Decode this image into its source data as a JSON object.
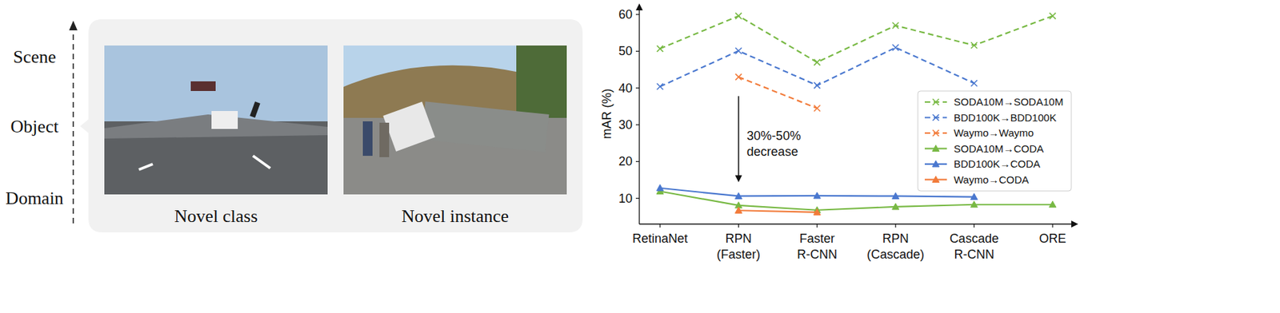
{
  "figure": {
    "levels": [
      "Scene",
      "Object",
      "Domain"
    ],
    "images": [
      {
        "caption": "Novel class"
      },
      {
        "caption": "Novel instance"
      }
    ]
  },
  "chart_data": {
    "type": "line",
    "y_label": "mAR (%)",
    "categories": [
      "RetinaNet",
      "RPN (Faster)",
      "Faster R-CNN",
      "RPN (Cascade)",
      "Cascade R-CNN",
      "ORE"
    ],
    "series": [
      {
        "name": "SODA10M→SODA10M",
        "color": "#78b944",
        "marker": "x",
        "line_style": "dashed",
        "values": [
          50.7,
          59.6,
          47.0,
          57.0,
          51.6,
          59.6
        ]
      },
      {
        "name": "BDD100K→BDD100K",
        "color": "#4a78cf",
        "marker": "x",
        "line_style": "dashed",
        "values": [
          40.4,
          50.1,
          40.7,
          51.0,
          41.3,
          null
        ]
      },
      {
        "name": "Waymo→Waymo",
        "color": "#f27b3a",
        "marker": "x",
        "line_style": "dashed",
        "values": [
          null,
          43.0,
          34.5,
          null,
          null,
          null
        ]
      },
      {
        "name": "SODA10M→CODA",
        "color": "#78b944",
        "marker": "triangle",
        "line_style": "solid",
        "values": [
          11.9,
          8.1,
          6.8,
          7.7,
          8.3,
          8.3
        ]
      },
      {
        "name": "BDD100K→CODA",
        "color": "#4a78cf",
        "marker": "triangle",
        "line_style": "solid",
        "values": [
          12.8,
          10.6,
          10.7,
          10.6,
          10.4,
          null
        ]
      },
      {
        "name": "Waymo→CODA",
        "color": "#f27b3a",
        "marker": "triangle",
        "line_style": "solid",
        "values": [
          null,
          6.7,
          6.2,
          null,
          null,
          null
        ]
      }
    ],
    "ylim": [
      3,
      63
    ],
    "yticks": [
      10,
      20,
      30,
      40,
      50,
      60
    ],
    "annotation": "30%-50% decrease",
    "legend": "right",
    "grid": false
  }
}
